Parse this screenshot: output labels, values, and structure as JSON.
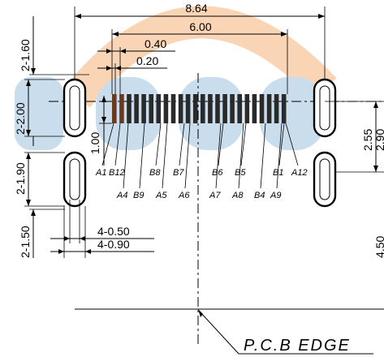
{
  "colors": {
    "wm_orange": "#f6b47a",
    "wm_blue": "#9fc3df",
    "pin_dark": "#2a2a2a",
    "pin_brown": "#6b3a1e"
  },
  "watermark": {
    "icon": "logo-watermark"
  },
  "dimensions": {
    "overall_width": "8.64",
    "pin_span": "6.00",
    "pitch_040": "0.40",
    "pin_width": "0.20",
    "slot_top_width": "2-1.60",
    "slot_top_height": "2-2.00",
    "slot_bot_height": "2-1.90",
    "slot_bot_width": "2-1.50",
    "pad_len": "1.00",
    "dim_255": "2.55",
    "dim_290": "2.90",
    "dim_450": "4.50",
    "slot_inner_w": "4-0.50",
    "slot_outer_w": "4-0.90"
  },
  "pin_labels_top": [
    "A1",
    "B12",
    "B8",
    "B7",
    "B6",
    "B5",
    "B1",
    "A12"
  ],
  "pin_labels_bottom": [
    "A4",
    "B9",
    "A5",
    "A6",
    "A7",
    "A8",
    "B4",
    "A9"
  ],
  "pcb_edge_label": "P.C.B  EDGE"
}
